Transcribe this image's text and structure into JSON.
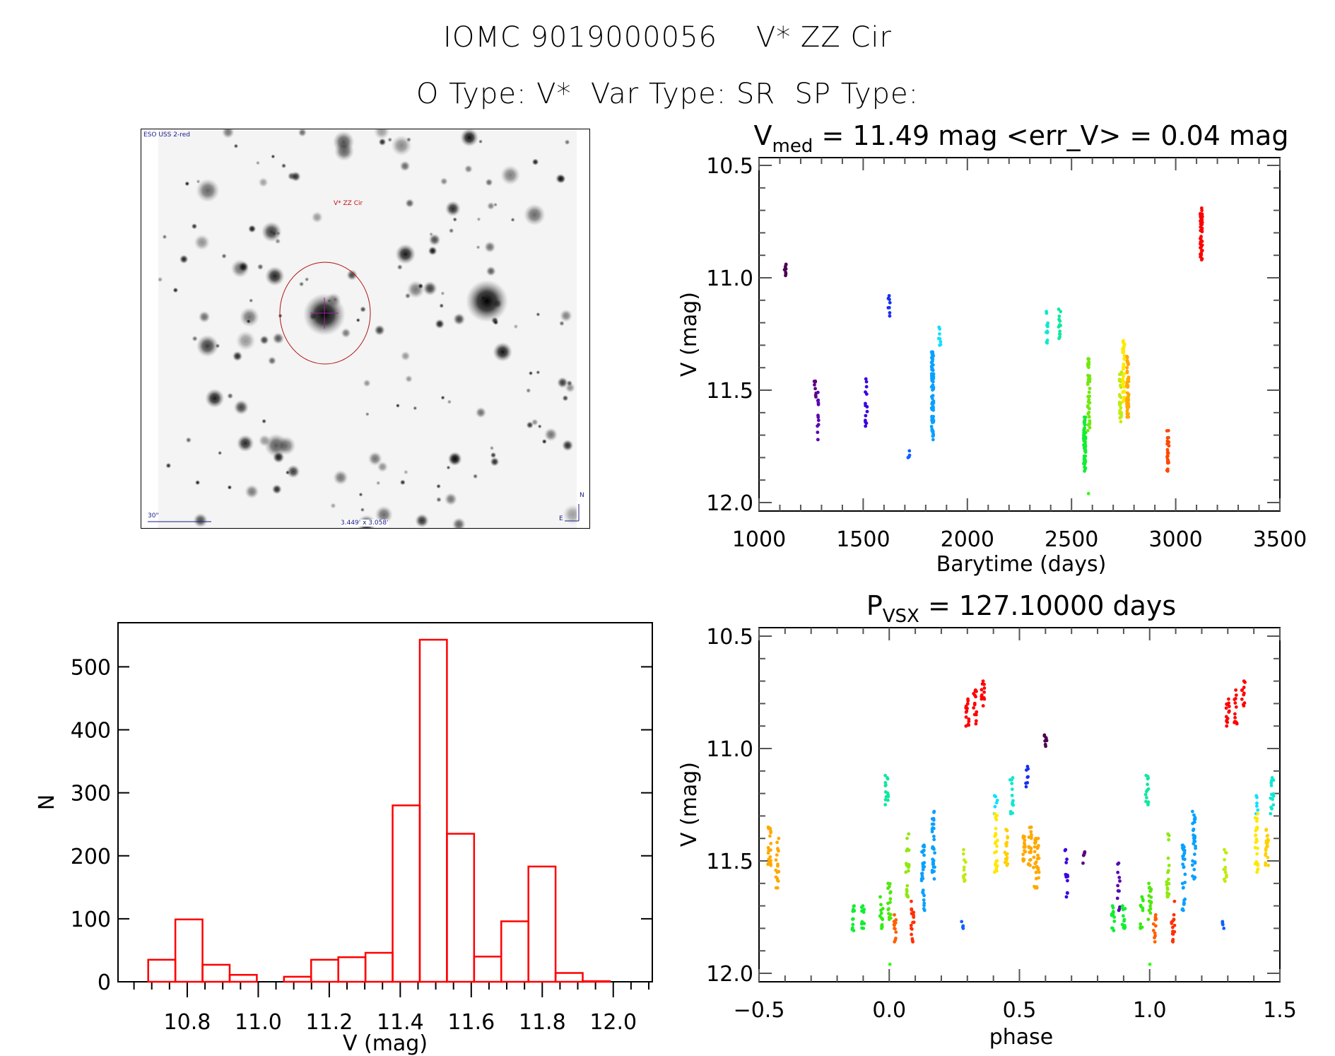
{
  "header": {
    "object_id": "IOMC 9019000056",
    "object_name": "V* ZZ Cir",
    "type_line": "O Type: V*  Var Type: SR  SP Type:"
  },
  "finder_image": {
    "survey_label": "ESO USS 2-red",
    "target_label": "V* ZZ Cir",
    "scale_label": "30\"",
    "fov_label": "3.449' x 3.058'",
    "north_label": "N",
    "east_label": "E",
    "colors": {
      "annotation": "#1a1a8c",
      "target": "#c01010",
      "crosshair": "#a020a0"
    }
  },
  "chart_data": [
    {
      "id": "lightcurve",
      "type": "scatter",
      "title_main": "V",
      "title_sub": "med",
      "title_rest": " = 11.49 mag <err_V> = 0.04 mag",
      "xlabel": "Barytime (days)",
      "ylabel": "V (mag)",
      "xlim": [
        1000,
        3500
      ],
      "ylim": [
        10.5,
        12.0
      ],
      "y_inverted": true,
      "xticks": [
        1000,
        1500,
        2000,
        2500,
        3000,
        3500
      ],
      "xtick_labels": [
        "1000",
        "1500",
        "2000",
        "2500",
        "3000",
        "3500"
      ],
      "yticks": [
        10.5,
        11.0,
        11.5,
        12.0
      ],
      "ytick_labels": [
        "10.5",
        "11.0",
        "11.5",
        "12.0"
      ],
      "grid": false,
      "point_groups": [
        {
          "t": 1125,
          "vmin": 10.94,
          "vmax": 10.99,
          "n": 8,
          "color": "#4b0050"
        },
        {
          "t": 1270,
          "vmin": 11.46,
          "vmax": 11.53,
          "n": 8,
          "color": "#5a0080"
        },
        {
          "t": 1285,
          "vmin": 11.51,
          "vmax": 11.72,
          "n": 12,
          "color": "#5a00b0"
        },
        {
          "t": 1515,
          "vmin": 11.45,
          "vmax": 11.66,
          "n": 14,
          "color": "#3a00e0"
        },
        {
          "t": 1625,
          "vmin": 11.08,
          "vmax": 11.17,
          "n": 8,
          "color": "#1830f0"
        },
        {
          "t": 1720,
          "vmin": 11.77,
          "vmax": 11.8,
          "n": 4,
          "color": "#1060ff"
        },
        {
          "t": 1833,
          "vmin": 11.33,
          "vmax": 11.72,
          "n": 80,
          "color": "#0aa0ff"
        },
        {
          "t": 1867,
          "vmin": 11.22,
          "vmax": 11.3,
          "n": 8,
          "color": "#10e0ff"
        },
        {
          "t": 2383,
          "vmin": 11.15,
          "vmax": 11.29,
          "n": 14,
          "color": "#10e8d0"
        },
        {
          "t": 2443,
          "vmin": 11.14,
          "vmax": 11.27,
          "n": 14,
          "color": "#10e8a0"
        },
        {
          "t": 2563,
          "vmin": 11.62,
          "vmax": 11.86,
          "n": 60,
          "color": "#10ee30"
        },
        {
          "t": 2583,
          "vmin": 11.36,
          "vmax": 11.68,
          "n": 40,
          "color": "#70e810"
        },
        {
          "t": 2580,
          "vmin": 11.96,
          "vmax": 11.96,
          "n": 1,
          "color": "#30ff10"
        },
        {
          "t": 2735,
          "vmin": 11.42,
          "vmax": 11.64,
          "n": 30,
          "color": "#c0ec10"
        },
        {
          "t": 2750,
          "vmin": 11.28,
          "vmax": 11.55,
          "n": 40,
          "color": "#ffe800"
        },
        {
          "t": 2770,
          "vmin": 11.35,
          "vmax": 11.62,
          "n": 60,
          "color": "#ffa800"
        },
        {
          "t": 2963,
          "vmin": 11.68,
          "vmax": 11.86,
          "n": 30,
          "color": "#ff4800"
        },
        {
          "t": 3123,
          "vmin": 10.69,
          "vmax": 10.92,
          "n": 50,
          "color": "#ff0000"
        }
      ]
    },
    {
      "id": "histogram",
      "type": "bar",
      "title": "",
      "xlabel": "V (mag)",
      "ylabel": "N",
      "xlim": [
        10.605,
        12.11
      ],
      "ylim": [
        0,
        570
      ],
      "xticks": [
        10.8,
        11.0,
        11.2,
        11.4,
        11.6,
        11.8,
        12.0
      ],
      "xtick_labels": [
        "10.8",
        "11.0",
        "11.2",
        "11.4",
        "11.6",
        "11.8",
        "12.0"
      ],
      "yticks": [
        0,
        100,
        200,
        300,
        400,
        500
      ],
      "ytick_labels": [
        "0",
        "100",
        "200",
        "300",
        "400",
        "500"
      ],
      "bin_start": 10.69,
      "bin_width": 0.0765,
      "values": [
        35,
        99,
        27,
        11,
        0,
        8,
        35,
        39,
        46,
        280,
        543,
        235,
        40,
        96,
        183,
        14,
        1
      ],
      "color": "#ff0000"
    },
    {
      "id": "phased",
      "type": "scatter",
      "title_main": "P",
      "title_sub": "VSX",
      "title_rest": " = 127.10000 days",
      "xlabel": "phase",
      "ylabel": "V (mag)",
      "xlim": [
        -0.5,
        1.5
      ],
      "ylim": [
        10.5,
        12.0
      ],
      "y_inverted": true,
      "xticks": [
        -0.5,
        0.0,
        0.5,
        1.0,
        1.5
      ],
      "xtick_labels": [
        "−0.5",
        "0.0",
        "0.5",
        "1.0",
        "1.5"
      ],
      "yticks": [
        10.5,
        11.0,
        11.5,
        12.0
      ],
      "ytick_labels": [
        "10.5",
        "11.0",
        "11.5",
        "12.0"
      ],
      "grid": false,
      "period_days": 127.1,
      "point_groups": [
        {
          "phase": 0.3,
          "vmin": 10.78,
          "vmax": 10.9,
          "n": 14,
          "color": "#ff0000"
        },
        {
          "phase": 0.33,
          "vmin": 10.74,
          "vmax": 10.89,
          "n": 14,
          "color": "#ff0000"
        },
        {
          "phase": 0.36,
          "vmin": 10.7,
          "vmax": 10.81,
          "n": 12,
          "color": "#ff0000"
        },
        {
          "phase": 0.6,
          "vmin": 10.94,
          "vmax": 10.99,
          "n": 8,
          "color": "#4b0050"
        },
        {
          "phase": 0.75,
          "vmin": 11.46,
          "vmax": 11.51,
          "n": 6,
          "color": "#5a0080"
        },
        {
          "phase": 0.88,
          "vmin": 11.51,
          "vmax": 11.72,
          "n": 12,
          "color": "#5a00b0"
        },
        {
          "phase": 0.68,
          "vmin": 11.45,
          "vmax": 11.66,
          "n": 12,
          "color": "#3a00e0"
        },
        {
          "phase": 0.53,
          "vmin": 11.08,
          "vmax": 11.17,
          "n": 8,
          "color": "#1830f0"
        },
        {
          "phase": 0.28,
          "vmin": 11.77,
          "vmax": 11.8,
          "n": 4,
          "color": "#1060ff"
        },
        {
          "phase": 0.13,
          "vmin": 11.43,
          "vmax": 11.72,
          "n": 30,
          "color": "#0aa0ff"
        },
        {
          "phase": 0.17,
          "vmin": 11.28,
          "vmax": 11.58,
          "n": 30,
          "color": "#0aa0ff"
        },
        {
          "phase": 0.41,
          "vmin": 11.21,
          "vmax": 11.29,
          "n": 6,
          "color": "#10e0ff"
        },
        {
          "phase": 0.47,
          "vmin": 11.13,
          "vmax": 11.29,
          "n": 14,
          "color": "#10e8d0"
        },
        {
          "phase": -0.01,
          "vmin": 11.12,
          "vmax": 11.25,
          "n": 14,
          "color": "#10e8a0"
        },
        {
          "phase": -0.14,
          "vmin": 11.7,
          "vmax": 11.81,
          "n": 12,
          "color": "#10ee30"
        },
        {
          "phase": -0.1,
          "vmin": 11.7,
          "vmax": 11.8,
          "n": 12,
          "color": "#10ee30"
        },
        {
          "phase": -0.03,
          "vmin": 11.66,
          "vmax": 11.8,
          "n": 12,
          "color": "#30ee10"
        },
        {
          "phase": 0.0,
          "vmin": 11.6,
          "vmax": 11.76,
          "n": 16,
          "color": "#50e810"
        },
        {
          "phase": 0.0,
          "vmin": 11.96,
          "vmax": 11.96,
          "n": 1,
          "color": "#30ff10"
        },
        {
          "phase": 0.07,
          "vmin": 11.38,
          "vmax": 11.66,
          "n": 20,
          "color": "#90e810"
        },
        {
          "phase": 0.29,
          "vmin": 11.45,
          "vmax": 11.59,
          "n": 12,
          "color": "#c0ec10"
        },
        {
          "phase": 0.41,
          "vmin": 11.29,
          "vmax": 11.55,
          "n": 24,
          "color": "#ffe800"
        },
        {
          "phase": 0.45,
          "vmin": 11.36,
          "vmax": 11.52,
          "n": 20,
          "color": "#ffd000"
        },
        {
          "phase": -0.46,
          "vmin": 11.35,
          "vmax": 11.52,
          "n": 20,
          "color": "#ffa800"
        },
        {
          "phase": -0.43,
          "vmin": 11.4,
          "vmax": 11.62,
          "n": 18,
          "color": "#ffa800"
        },
        {
          "phase": 0.52,
          "vmin": 11.39,
          "vmax": 11.5,
          "n": 16,
          "color": "#ffa800"
        },
        {
          "phase": 0.56,
          "vmin": 11.4,
          "vmax": 11.62,
          "n": 16,
          "color": "#ffa800"
        },
        {
          "phase": 0.02,
          "vmin": 11.74,
          "vmax": 11.86,
          "n": 12,
          "color": "#ff6000"
        },
        {
          "phase": 0.09,
          "vmin": 11.68,
          "vmax": 11.86,
          "n": 16,
          "color": "#ff3000"
        }
      ]
    }
  ]
}
